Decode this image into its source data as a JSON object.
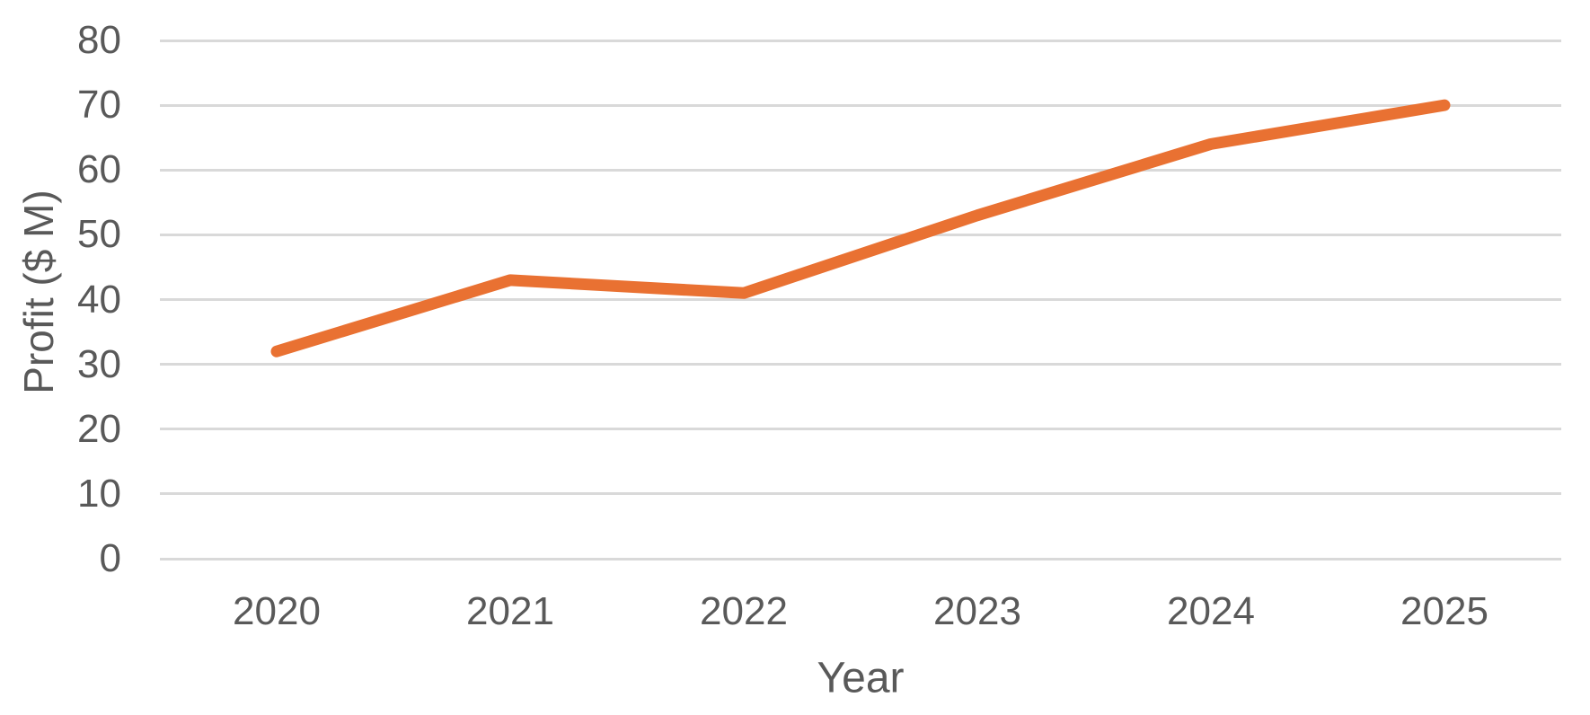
{
  "chart_data": {
    "type": "line",
    "title": "",
    "xlabel": "Year",
    "ylabel": "Profit ($ M)",
    "categories": [
      "2020",
      "2021",
      "2022",
      "2023",
      "2024",
      "2025"
    ],
    "values": [
      32,
      43,
      41,
      53,
      64,
      70
    ],
    "ylim": [
      0,
      80
    ],
    "yticks": [
      0,
      10,
      20,
      30,
      40,
      50,
      60,
      70,
      80
    ],
    "grid": "horizontal",
    "legend": "none",
    "markers": "none",
    "line_color": "#E97132",
    "grid_color": "#D9D9D9",
    "text_color": "#595959"
  }
}
